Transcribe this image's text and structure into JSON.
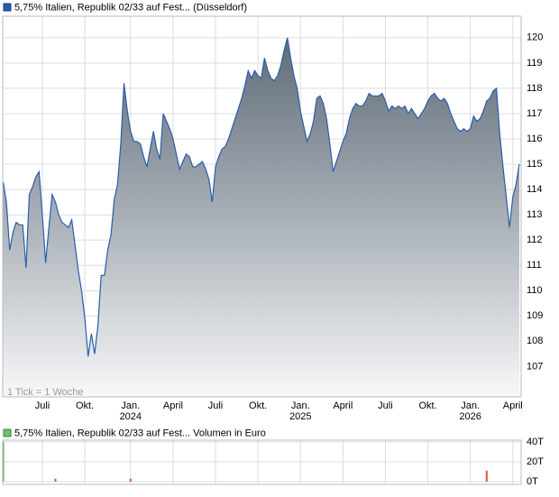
{
  "chart_data": [
    {
      "type": "area",
      "annotation": "1 Tick = 1 Woche",
      "categories": [
        null,
        null,
        null,
        null,
        null,
        null,
        null,
        null,
        null,
        null,
        null,
        null,
        "Juli",
        null,
        null,
        null,
        null,
        null,
        null,
        null,
        null,
        null,
        null,
        null,
        null,
        "Okt.",
        null,
        null,
        null,
        null,
        null,
        null,
        null,
        null,
        null,
        null,
        null,
        null,
        null,
        "Jan.",
        null,
        null,
        null,
        null,
        null,
        null,
        null,
        null,
        null,
        null,
        null,
        null,
        "April",
        null,
        null,
        null,
        null,
        null,
        null,
        null,
        null,
        null,
        null,
        null,
        null,
        "Juli",
        null,
        null,
        null,
        null,
        null,
        null,
        null,
        null,
        null,
        null,
        null,
        null,
        "Okt.",
        null,
        null,
        null,
        null,
        null,
        null,
        null,
        null,
        null,
        null,
        null,
        null,
        "Jan.",
        null,
        null,
        null,
        null,
        null,
        null,
        null,
        null,
        null,
        null,
        null,
        null,
        "April",
        null,
        null,
        null,
        null,
        null,
        null,
        null,
        null,
        null,
        null,
        null,
        null,
        "Juli",
        null,
        null,
        null,
        null,
        null,
        null,
        null,
        null,
        null,
        null,
        null,
        null,
        "Okt.",
        null,
        null,
        null,
        null,
        null,
        null,
        null,
        null,
        null,
        null,
        null,
        null,
        "Jan.",
        null,
        null,
        null,
        null,
        null,
        null,
        null,
        null,
        null,
        null,
        null,
        null,
        "April",
        null,
        null
      ],
      "category_years": [
        null,
        null,
        null,
        null,
        null,
        null,
        null,
        null,
        null,
        null,
        null,
        null,
        null,
        null,
        null,
        null,
        null,
        null,
        null,
        null,
        null,
        null,
        null,
        null,
        null,
        null,
        null,
        null,
        null,
        null,
        null,
        null,
        null,
        null,
        null,
        null,
        null,
        null,
        null,
        "2024",
        null,
        null,
        null,
        null,
        null,
        null,
        null,
        null,
        null,
        null,
        null,
        null,
        null,
        null,
        null,
        null,
        null,
        null,
        null,
        null,
        null,
        null,
        null,
        null,
        null,
        null,
        null,
        null,
        null,
        null,
        null,
        null,
        null,
        null,
        null,
        null,
        null,
        null,
        null,
        null,
        null,
        null,
        null,
        null,
        null,
        null,
        null,
        null,
        null,
        null,
        null,
        "2025",
        null,
        null,
        null,
        null,
        null,
        null,
        null,
        null,
        null,
        null,
        null,
        null,
        null,
        null,
        null,
        null,
        null,
        null,
        null,
        null,
        null,
        null,
        null,
        null,
        null,
        null,
        null,
        null,
        null,
        null,
        null,
        null,
        null,
        null,
        null,
        null,
        null,
        null,
        null,
        null,
        null,
        null,
        null,
        null,
        null,
        null,
        null,
        null,
        null,
        null,
        null,
        "2026",
        null,
        null,
        null,
        null,
        null,
        null,
        null,
        null,
        null,
        null,
        null,
        null,
        null,
        null,
        null
      ],
      "series": [
        {
          "name": "5,75% Italien, Republik 02/33 auf Fest... (Düsseldorf)",
          "color": "#2a5caa",
          "values": [
            114.3,
            113.5,
            111.6,
            112.3,
            112.7,
            112.6,
            112.6,
            110.9,
            113.8,
            114.1,
            114.5,
            114.7,
            113.0,
            111.1,
            112.5,
            113.8,
            113.5,
            113.0,
            112.7,
            112.6,
            112.5,
            112.8,
            111.8,
            110.8,
            110.0,
            108.9,
            107.4,
            108.3,
            107.5,
            108.6,
            110.6,
            110.6,
            111.6,
            112.2,
            113.6,
            114.2,
            115.8,
            118.2,
            117.1,
            116.3,
            115.9,
            115.9,
            115.8,
            115.3,
            114.9,
            115.6,
            116.3,
            115.6,
            115.2,
            117.0,
            116.7,
            116.4,
            116.0,
            115.4,
            114.8,
            115.1,
            115.4,
            115.3,
            114.9,
            114.9,
            115.0,
            115.1,
            114.8,
            114.4,
            113.5,
            114.9,
            115.3,
            115.6,
            115.7,
            116.0,
            116.4,
            116.8,
            117.2,
            117.6,
            118.1,
            118.7,
            118.4,
            118.7,
            118.5,
            118.4,
            119.2,
            118.7,
            118.4,
            118.3,
            118.5,
            118.9,
            119.5,
            120.0,
            119.2,
            118.5,
            118.0,
            117.1,
            116.5,
            115.9,
            116.2,
            116.7,
            117.6,
            117.7,
            117.4,
            116.8,
            115.8,
            114.7,
            115.1,
            115.5,
            115.9,
            116.2,
            116.8,
            117.2,
            117.4,
            117.3,
            117.3,
            117.5,
            117.8,
            117.7,
            117.7,
            117.7,
            117.8,
            117.5,
            117.1,
            117.3,
            117.2,
            117.3,
            117.2,
            117.3,
            117.0,
            117.2,
            117.0,
            116.8,
            117.0,
            117.2,
            117.5,
            117.7,
            117.8,
            117.6,
            117.5,
            117.6,
            117.4,
            117.0,
            116.7,
            116.4,
            116.3,
            116.4,
            116.3,
            116.4,
            116.9,
            116.7,
            116.8,
            117.1,
            117.5,
            117.6,
            117.9,
            118.0,
            116.2,
            114.9,
            113.7,
            112.5,
            113.7,
            114.2,
            115.0
          ]
        }
      ],
      "ylim": [
        105.8,
        120.85
      ],
      "yticks": [
        107,
        108,
        109,
        110,
        111,
        112,
        113,
        114,
        115,
        116,
        117,
        118,
        119,
        120
      ],
      "grid": true
    },
    {
      "type": "bar",
      "series": [
        {
          "name": "5,75% Italien, Republik 02/33 auf Fest... Volumen in Euro",
          "values": [
            40000,
            null,
            null,
            null,
            null,
            null,
            null,
            null,
            null,
            null,
            null,
            null,
            null,
            null,
            null,
            null,
            3000,
            null,
            null,
            null,
            null,
            null,
            null,
            null,
            null,
            null,
            null,
            null,
            null,
            null,
            null,
            null,
            null,
            null,
            null,
            null,
            null,
            null,
            null,
            3000,
            null,
            null,
            null,
            null,
            null,
            null,
            null,
            null,
            null,
            null,
            null,
            null,
            null,
            null,
            null,
            null,
            null,
            null,
            null,
            null,
            null,
            null,
            null,
            null,
            null,
            null,
            null,
            null,
            null,
            null,
            null,
            null,
            null,
            null,
            null,
            null,
            null,
            null,
            null,
            null,
            null,
            null,
            null,
            null,
            null,
            null,
            null,
            null,
            null,
            null,
            null,
            null,
            null,
            null,
            null,
            null,
            null,
            null,
            null,
            null,
            null,
            null,
            null,
            null,
            null,
            null,
            null,
            null,
            null,
            null,
            null,
            null,
            null,
            null,
            null,
            null,
            null,
            null,
            null,
            null,
            null,
            null,
            null,
            null,
            null,
            null,
            null,
            null,
            null,
            null,
            null,
            null,
            null,
            null,
            null,
            null,
            null,
            null,
            null,
            null,
            null,
            null,
            null,
            null,
            null,
            null,
            null,
            null,
            11000,
            null,
            null,
            null,
            null,
            null,
            null,
            null,
            null,
            null,
            null
          ],
          "colors": [
            "#3cb043",
            null,
            null,
            null,
            null,
            null,
            null,
            null,
            null,
            null,
            null,
            null,
            null,
            null,
            null,
            null,
            "#e05040",
            null,
            null,
            null,
            null,
            null,
            null,
            null,
            null,
            null,
            null,
            null,
            null,
            null,
            null,
            null,
            null,
            null,
            null,
            null,
            null,
            null,
            null,
            "#e05040",
            null,
            null,
            null,
            null,
            null,
            null,
            null,
            null,
            null,
            null,
            null,
            null,
            null,
            null,
            null,
            null,
            null,
            null,
            null,
            null,
            null,
            null,
            null,
            null,
            null,
            null,
            null,
            null,
            null,
            null,
            null,
            null,
            null,
            null,
            null,
            null,
            null,
            null,
            null,
            null,
            null,
            null,
            null,
            null,
            null,
            null,
            null,
            null,
            null,
            null,
            null,
            null,
            null,
            null,
            null,
            null,
            null,
            null,
            null,
            null,
            null,
            null,
            null,
            null,
            null,
            null,
            null,
            null,
            null,
            null,
            null,
            null,
            null,
            null,
            null,
            null,
            null,
            null,
            null,
            null,
            null,
            null,
            null,
            null,
            null,
            null,
            null,
            null,
            null,
            null,
            null,
            null,
            null,
            null,
            null,
            null,
            null,
            null,
            null,
            null,
            null,
            null,
            null,
            null,
            null,
            null,
            null,
            null,
            "#e05040",
            null,
            null,
            null,
            null,
            null,
            null,
            null,
            null,
            null,
            null
          ]
        }
      ],
      "ylim": [
        0,
        40000
      ],
      "yticks": [
        {
          "value": 0,
          "label": "0T"
        },
        {
          "value": 20000,
          "label": "20T"
        },
        {
          "value": 40000,
          "label": "40T"
        }
      ],
      "grid": true
    }
  ]
}
